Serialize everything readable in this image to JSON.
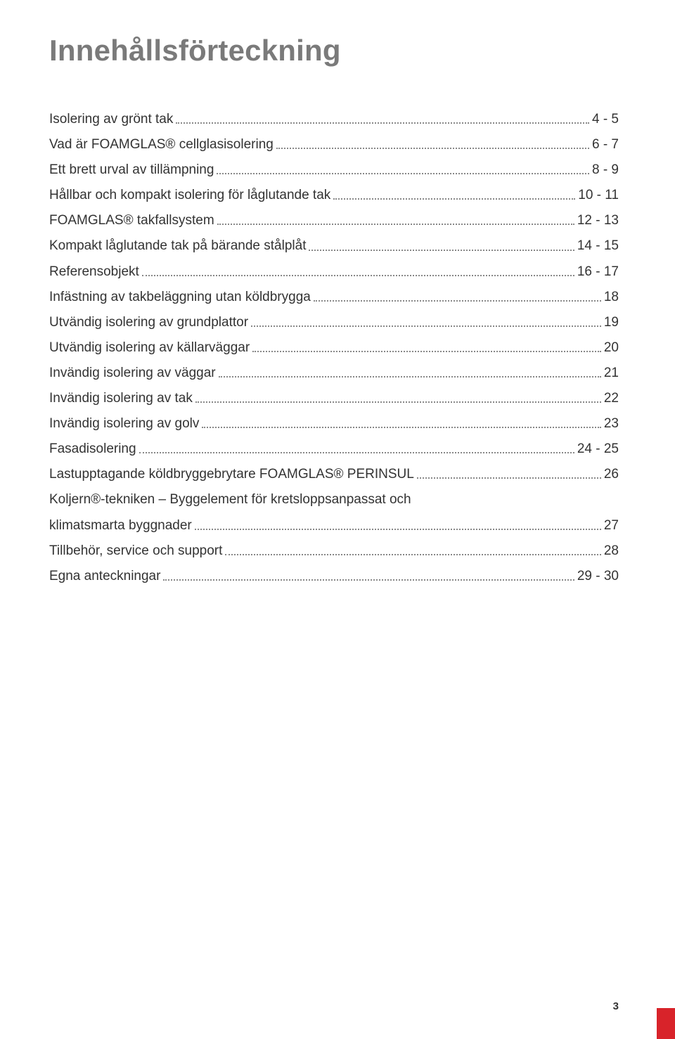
{
  "title": "Innehållsförteckning",
  "toc": [
    {
      "label": "Isolering av grönt tak",
      "page": "4 - 5"
    },
    {
      "label": "Vad är FOAMGLAS® cellglasisolering",
      "page": "6 - 7"
    },
    {
      "label": "Ett brett urval av tillämpning",
      "page": "8 - 9"
    },
    {
      "label": "Hållbar och kompakt isolering för låglutande tak",
      "page": "10 - 11"
    },
    {
      "label": "FOAMGLAS® takfallsystem",
      "page": "12 - 13"
    },
    {
      "label": "Kompakt låglutande tak på bärande stålplåt",
      "page": "14 - 15"
    },
    {
      "label": "Referensobjekt",
      "page": "16 - 17"
    },
    {
      "label": "Infästning av takbeläggning utan köldbrygga",
      "page": "18"
    },
    {
      "label": "Utvändig isolering av grundplattor",
      "page": "19"
    },
    {
      "label": "Utvändig isolering av källarväggar",
      "page": "20"
    },
    {
      "label": "Invändig isolering av väggar",
      "page": "21"
    },
    {
      "label": "Invändig isolering av tak",
      "page": "22"
    },
    {
      "label": "Invändig isolering av golv",
      "page": "23"
    },
    {
      "label": "Fasadisolering",
      "page": "24 - 25"
    },
    {
      "label": "Lastupptagande köldbryggebrytare FOAMGLAS® PERINSUL",
      "page": "26"
    },
    {
      "label_line1": "Koljern®-tekniken – Byggelement för kretsloppsanpassat och",
      "label": "klimatsmarta byggnader",
      "page": "27",
      "multiline": true
    },
    {
      "label": "Tillbehör, service och support",
      "page": "28"
    },
    {
      "label": "Egna anteckningar",
      "page": "29 - 30"
    }
  ],
  "page_number": "3",
  "colors": {
    "title": "#7a7a7a",
    "text": "#333333",
    "dots": "#888888",
    "accent": "#d8232a",
    "background": "#ffffff"
  }
}
